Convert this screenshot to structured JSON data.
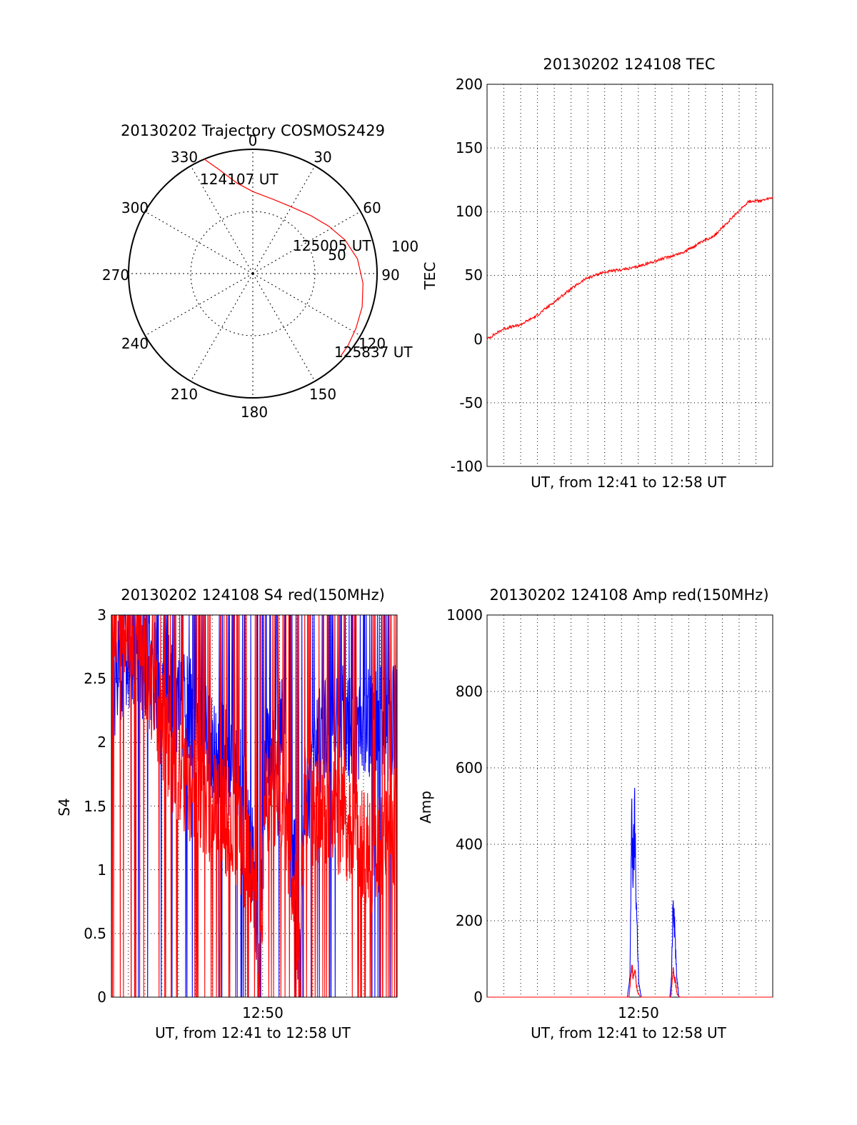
{
  "figure": {
    "background": "#ffffff",
    "colors": {
      "red": "#ff0000",
      "blue": "#0000ff",
      "axis": "#000000",
      "grid": "#000000"
    }
  },
  "chart_data": [
    {
      "id": "trajectory",
      "type": "polar",
      "title": "20130202 Trajectory COSMOS2429",
      "angular_ticks": [
        "0",
        "30",
        "60",
        "90",
        "120",
        "150",
        "180",
        "210",
        "240",
        "270",
        "300",
        "330"
      ],
      "radial_ticks": [
        "50",
        "100"
      ],
      "radial_max": 100,
      "grid": true,
      "series": [
        {
          "color": "#ff0000",
          "points": [
            {
              "az": 337,
              "r": 100
            },
            {
              "az": 342,
              "r": 88
            },
            {
              "az": 350,
              "r": 74
            },
            {
              "az": 360,
              "r": 66
            },
            {
              "az": 15,
              "r": 62
            },
            {
              "az": 30,
              "r": 62
            },
            {
              "az": 45,
              "r": 66
            },
            {
              "az": 58,
              "r": 72
            },
            {
              "az": 70,
              "r": 79
            },
            {
              "az": 82,
              "r": 85
            },
            {
              "az": 95,
              "r": 89
            },
            {
              "az": 107,
              "r": 92
            },
            {
              "az": 118,
              "r": 94
            },
            {
              "az": 127,
              "r": 96
            },
            {
              "az": 133,
              "r": 97
            }
          ]
        }
      ],
      "annotations": [
        "124107 UT",
        "125005 UT",
        "125837 UT"
      ]
    },
    {
      "id": "tec",
      "type": "line",
      "title": "20130202 124108 TEC",
      "xlabel": "UT, from 12:41 to 12:58 UT",
      "ylabel": "TEC",
      "xlim": [
        0,
        17.5
      ],
      "ylim": [
        -100,
        200
      ],
      "yticks": [
        "200",
        "150",
        "100",
        "50",
        "0",
        "-50",
        "-100"
      ],
      "grid": true,
      "series": [
        {
          "color": "#ff0000",
          "points": [
            [
              0,
              0
            ],
            [
              1,
              8
            ],
            [
              2,
              11
            ],
            [
              3,
              18
            ],
            [
              4,
              28
            ],
            [
              5,
              38
            ],
            [
              6,
              47
            ],
            [
              7,
              52
            ],
            [
              8,
              54
            ],
            [
              9,
              56
            ],
            [
              10,
              60
            ],
            [
              11,
              64
            ],
            [
              12,
              68
            ],
            [
              13,
              75
            ],
            [
              14,
              82
            ],
            [
              15,
              95
            ],
            [
              16,
              108
            ],
            [
              17,
              109
            ],
            [
              17.5,
              111
            ]
          ]
        }
      ]
    },
    {
      "id": "s4",
      "type": "line",
      "title": "20130202 124108 S4 red(150MHz)",
      "xlabel": "UT, from 12:41 to 12:58 UT",
      "ylabel": "S4",
      "xlim": [
        0,
        17.5
      ],
      "ylim": [
        0,
        3
      ],
      "yticks": [
        "3",
        "2.5",
        "2",
        "1.5",
        "1",
        "0.5",
        "0"
      ],
      "xticks": [
        "12:50"
      ],
      "grid": true,
      "series": [
        {
          "color": "#0000ff",
          "points": [
            [
              0,
              2.4
            ],
            [
              1,
              2.7
            ],
            [
              2,
              2.6
            ],
            [
              3,
              2.5
            ],
            [
              4,
              2.3
            ],
            [
              5,
              2.2
            ],
            [
              6,
              2.0
            ],
            [
              7,
              1.9
            ],
            [
              8,
              1.7
            ],
            [
              8.8,
              0.9
            ],
            [
              9.1,
              0.15
            ],
            [
              9.4,
              1.8
            ],
            [
              10.5,
              2.1
            ],
            [
              11.0,
              1.2
            ],
            [
              11.3,
              0.9
            ],
            [
              11.5,
              0.15
            ],
            [
              11.8,
              1.5
            ],
            [
              13,
              2.1
            ],
            [
              14,
              2.2
            ],
            [
              15,
              2.0
            ],
            [
              16,
              2.2
            ],
            [
              17,
              2.1
            ],
            [
              17.5,
              2.2
            ]
          ]
        },
        {
          "color": "#ff0000",
          "points": [
            [
              0,
              3
            ],
            [
              1,
              3
            ],
            [
              2,
              2.6
            ],
            [
              3,
              2.2
            ],
            [
              4,
              1.8
            ],
            [
              5,
              1.6
            ],
            [
              6,
              1.5
            ],
            [
              7,
              1.4
            ],
            [
              8,
              1.2
            ],
            [
              8.8,
              0.9
            ],
            [
              9.1,
              0.15
            ],
            [
              9.4,
              1.5
            ],
            [
              10.5,
              1.6
            ],
            [
              11.0,
              1.0
            ],
            [
              11.3,
              0.8
            ],
            [
              11.5,
              0.15
            ],
            [
              11.8,
              1.4
            ],
            [
              13,
              1.5
            ],
            [
              14,
              1.4
            ],
            [
              15,
              1.3
            ],
            [
              16,
              1.1
            ],
            [
              17,
              1.2
            ],
            [
              17.5,
              1.4
            ]
          ]
        }
      ]
    },
    {
      "id": "amp",
      "type": "line",
      "title": "20130202 124108 Amp red(150MHz)",
      "xlabel": "UT, from 12:41 to 12:58 UT",
      "ylabel": "Amp",
      "xlim": [
        0,
        17.5
      ],
      "ylim": [
        0,
        1000
      ],
      "yticks": [
        "1000",
        "800",
        "600",
        "400",
        "200",
        "0"
      ],
      "xticks": [
        "12:50"
      ],
      "grid": true,
      "series": [
        {
          "color": "#0000ff",
          "points": [
            [
              0,
              0
            ],
            [
              8.6,
              0
            ],
            [
              8.75,
              60
            ],
            [
              8.85,
              550
            ],
            [
              8.95,
              420
            ],
            [
              9.05,
              570
            ],
            [
              9.15,
              300
            ],
            [
              9.3,
              40
            ],
            [
              9.45,
              0
            ],
            [
              11.2,
              0
            ],
            [
              11.3,
              60
            ],
            [
              11.4,
              350
            ],
            [
              11.5,
              230
            ],
            [
              11.6,
              80
            ],
            [
              11.75,
              0
            ],
            [
              17.5,
              0
            ]
          ]
        },
        {
          "color": "#ff0000",
          "points": [
            [
              0,
              0
            ],
            [
              8.7,
              0
            ],
            [
              8.85,
              100
            ],
            [
              8.95,
              70
            ],
            [
              9.05,
              90
            ],
            [
              9.2,
              20
            ],
            [
              9.4,
              0
            ],
            [
              11.25,
              0
            ],
            [
              11.4,
              80
            ],
            [
              11.5,
              60
            ],
            [
              11.65,
              10
            ],
            [
              11.8,
              0
            ],
            [
              17.5,
              0
            ]
          ]
        }
      ]
    }
  ]
}
